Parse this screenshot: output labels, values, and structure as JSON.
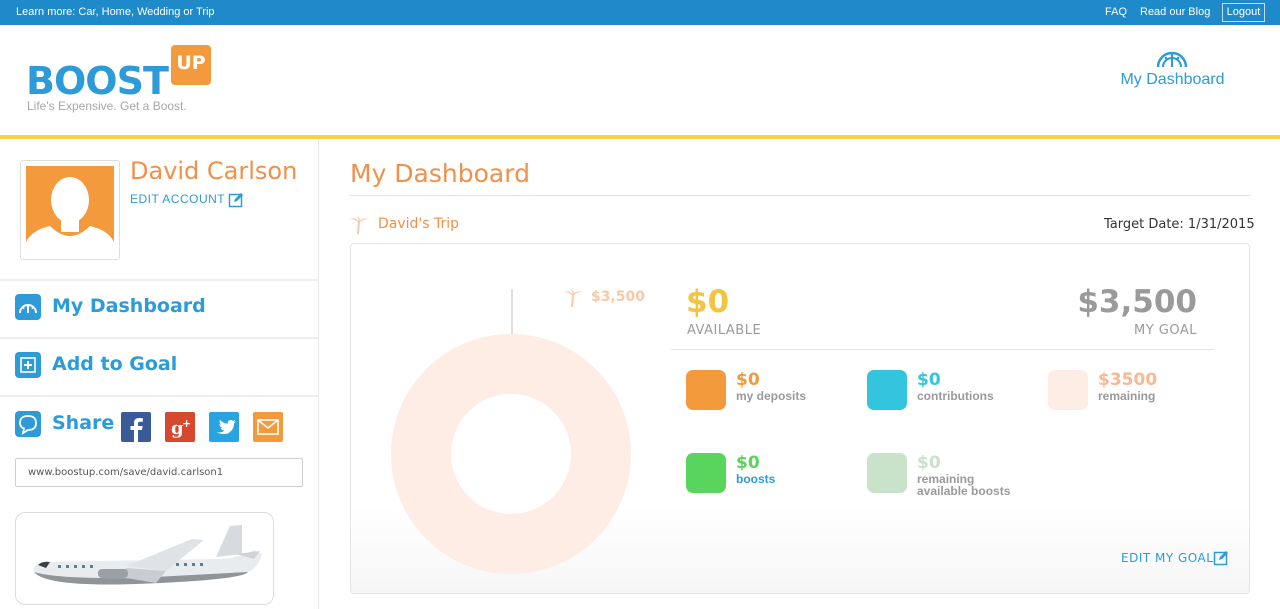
{
  "topbar": {
    "learn_prefix": "Learn more:",
    "learn_links": [
      "Car",
      "Home",
      "Wedding",
      "Trip"
    ],
    "learn_or": "or",
    "faq": "FAQ",
    "blog": "Read our Blog",
    "logout": "Logout"
  },
  "brand": {
    "name_main": "BOOST",
    "name_badge": "UP",
    "tagline": "Life's Expensive. Get a Boost.",
    "primary_color": "#2d9bd8",
    "accent_color": "#f39a3d"
  },
  "header": {
    "dashboard_link": "My Dashboard",
    "dashboard_icon": "gauge-icon"
  },
  "profile": {
    "name": "David Carlson",
    "edit_account": "EDIT ACCOUNT"
  },
  "sidebar": {
    "nav": [
      {
        "label": "My Dashboard",
        "icon": "gauge-icon"
      },
      {
        "label": "Add to Goal",
        "icon": "plus-icon"
      }
    ],
    "share_label": "Share",
    "share_networks": [
      "facebook-icon",
      "google-plus-icon",
      "twitter-icon",
      "email-icon"
    ],
    "share_url": "www.boostup.com/save/david.carlson1"
  },
  "main": {
    "title": "My Dashboard",
    "goal_name": "David's Trip",
    "target_date": "Target Date: 1/31/2015",
    "goal_marker": "$3,500",
    "available_value": "$0",
    "available_label": "AVAILABLE",
    "goal_value": "$3,500",
    "goal_label": "MY GOAL",
    "progress_fraction": 0,
    "stats": [
      {
        "value": "$0",
        "label": "my deposits",
        "color": "#f39a3d",
        "value_color": "#f39a3d",
        "label_color": "#9a9a9a"
      },
      {
        "value": "$0",
        "label": "contributions",
        "color": "#33c5dd",
        "value_color": "#33c5dd",
        "label_color": "#9a9a9a"
      },
      {
        "value": "$3500",
        "label": "remaining",
        "color": "#fdede4",
        "value_color": "#f8b890",
        "label_color": "#9a9a9a"
      },
      {
        "value": "$0",
        "label": "boosts",
        "color": "#59d45c",
        "value_color": "#59d45c",
        "label_color": "#2d9bd8"
      },
      {
        "value": "$0",
        "label": "remaining available boosts",
        "color": "#c9e3cb",
        "value_color": "#c9e3cb",
        "label_color": "#9a9a9a"
      }
    ],
    "edit_goal": "EDIT MY GOAL"
  }
}
